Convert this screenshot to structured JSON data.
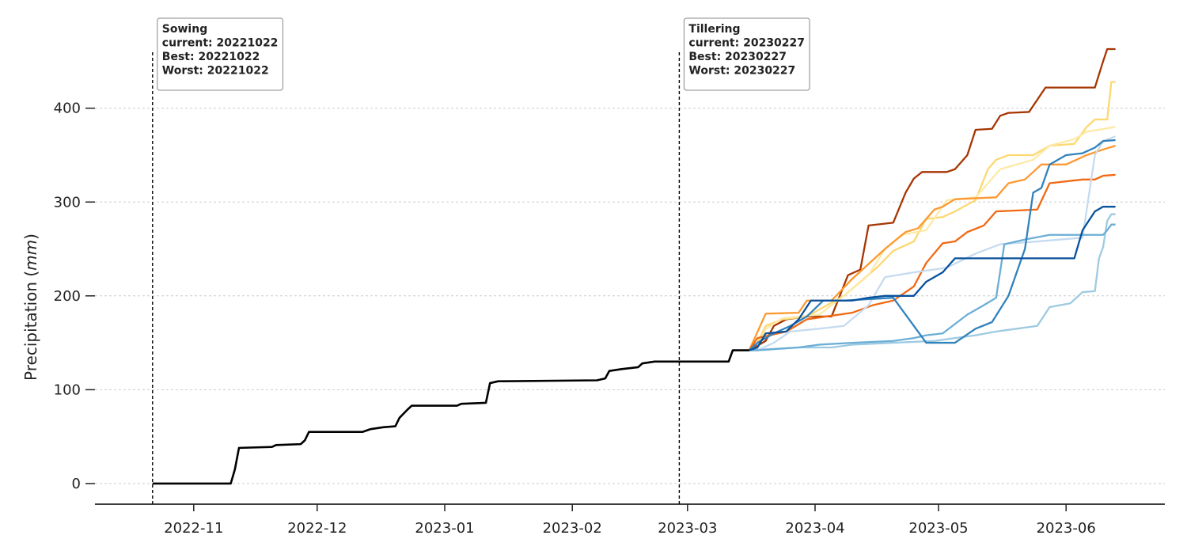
{
  "chart_data": {
    "type": "line",
    "ylabel_main": "Precipitation (",
    "ylabel_unit": "mm",
    "ylabel_close": ")",
    "ylim": [
      -22,
      490
    ],
    "xlim": [
      "2022-10-08",
      "2023-06-25"
    ],
    "grid": "horizontal dashed",
    "yticks": [
      0,
      100,
      200,
      300,
      400
    ],
    "xticks": [
      "2022-11-01",
      "2022-12-01",
      "2023-01-01",
      "2023-02-01",
      "2023-03-01",
      "2023-04-01",
      "2023-05-01",
      "2023-06-01"
    ],
    "xtick_labels": [
      "2022-11",
      "2022-12",
      "2023-01",
      "2023-02",
      "2023-03",
      "2023-04",
      "2023-05",
      "2023-06"
    ],
    "annotations": [
      {
        "date": "2022-10-22",
        "lines": [
          "Sowing",
          "current: 20221022",
          "Best: 20221022",
          "Worst: 20221022"
        ]
      },
      {
        "date": "2023-02-27",
        "lines": [
          "Tillering",
          "current: 20230227",
          "Best: 20230227",
          "Worst: 20230227"
        ]
      }
    ],
    "observed": {
      "color": "#000000",
      "points": [
        [
          "2022-10-22",
          0
        ],
        [
          "2022-11-10",
          0
        ],
        [
          "2022-11-11",
          15
        ],
        [
          "2022-11-12",
          38
        ],
        [
          "2022-11-20",
          39
        ],
        [
          "2022-11-21",
          41
        ],
        [
          "2022-11-27",
          42
        ],
        [
          "2022-11-28",
          46
        ],
        [
          "2022-11-29",
          55
        ],
        [
          "2022-12-12",
          55
        ],
        [
          "2022-12-14",
          58
        ],
        [
          "2022-12-17",
          60
        ],
        [
          "2022-12-20",
          61
        ],
        [
          "2022-12-21",
          70
        ],
        [
          "2022-12-23",
          79
        ],
        [
          "2022-12-24",
          83
        ],
        [
          "2023-01-04",
          83
        ],
        [
          "2023-01-05",
          85
        ],
        [
          "2023-01-11",
          86
        ],
        [
          "2023-01-12",
          107
        ],
        [
          "2023-01-14",
          109
        ],
        [
          "2023-02-07",
          110
        ],
        [
          "2023-02-09",
          112
        ],
        [
          "2023-02-10",
          120
        ],
        [
          "2023-02-13",
          122
        ],
        [
          "2023-02-17",
          124
        ],
        [
          "2023-02-18",
          128
        ],
        [
          "2023-02-21",
          130
        ],
        [
          "2023-03-11",
          130
        ],
        [
          "2023-03-12",
          142
        ],
        [
          "2023-03-16",
          142
        ]
      ]
    },
    "forecast_start": [
      "2023-03-16",
      142
    ],
    "series": [
      {
        "color": "#a63603",
        "points": [
          [
            "2023-03-20",
            152
          ],
          [
            "2023-03-22",
            168
          ],
          [
            "2023-03-25",
            175
          ],
          [
            "2023-03-30",
            178
          ],
          [
            "2023-04-05",
            178
          ],
          [
            "2023-04-07",
            200
          ],
          [
            "2023-04-09",
            222
          ],
          [
            "2023-04-12",
            228
          ],
          [
            "2023-04-14",
            275
          ],
          [
            "2023-04-20",
            278
          ],
          [
            "2023-04-23",
            310
          ],
          [
            "2023-04-25",
            325
          ],
          [
            "2023-04-27",
            332
          ],
          [
            "2023-05-03",
            332
          ],
          [
            "2023-05-05",
            335
          ],
          [
            "2023-05-08",
            350
          ],
          [
            "2023-05-10",
            377
          ],
          [
            "2023-05-14",
            378
          ],
          [
            "2023-05-16",
            392
          ],
          [
            "2023-05-18",
            395
          ],
          [
            "2023-05-23",
            396
          ],
          [
            "2023-05-27",
            422
          ],
          [
            "2023-06-08",
            422
          ],
          [
            "2023-06-10",
            450
          ],
          [
            "2023-06-11",
            463
          ],
          [
            "2023-06-13",
            463
          ]
        ]
      },
      {
        "color": "#fdd870",
        "points": [
          [
            "2023-03-18",
            150
          ],
          [
            "2023-03-20",
            168
          ],
          [
            "2023-03-24",
            175
          ],
          [
            "2023-03-30",
            178
          ],
          [
            "2023-04-08",
            200
          ],
          [
            "2023-04-12",
            215
          ],
          [
            "2023-04-16",
            230
          ],
          [
            "2023-04-20",
            248
          ],
          [
            "2023-04-25",
            258
          ],
          [
            "2023-04-28",
            282
          ],
          [
            "2023-05-02",
            284
          ],
          [
            "2023-05-05",
            290
          ],
          [
            "2023-05-10",
            302
          ],
          [
            "2023-05-13",
            335
          ],
          [
            "2023-05-15",
            345
          ],
          [
            "2023-05-18",
            350
          ],
          [
            "2023-05-24",
            350
          ],
          [
            "2023-05-28",
            360
          ],
          [
            "2023-06-03",
            362
          ],
          [
            "2023-06-06",
            380
          ],
          [
            "2023-06-08",
            388
          ],
          [
            "2023-06-11",
            388
          ],
          [
            "2023-06-12",
            428
          ],
          [
            "2023-06-13",
            428
          ]
        ]
      },
      {
        "color": "#fee9a6",
        "points": [
          [
            "2023-03-18",
            145
          ],
          [
            "2023-03-20",
            165
          ],
          [
            "2023-03-24",
            176
          ],
          [
            "2023-04-02",
            180
          ],
          [
            "2023-04-08",
            200
          ],
          [
            "2023-04-14",
            222
          ],
          [
            "2023-04-18",
            250
          ],
          [
            "2023-04-22",
            265
          ],
          [
            "2023-04-28",
            270
          ],
          [
            "2023-05-03",
            302
          ],
          [
            "2023-05-10",
            305
          ],
          [
            "2023-05-16",
            335
          ],
          [
            "2023-05-24",
            345
          ],
          [
            "2023-05-28",
            360
          ],
          [
            "2023-06-03",
            367
          ],
          [
            "2023-06-06",
            375
          ],
          [
            "2023-06-13",
            380
          ]
        ]
      },
      {
        "color": "#fd9930",
        "points": [
          [
            "2023-03-20",
            181
          ],
          [
            "2023-03-28",
            182
          ],
          [
            "2023-03-30",
            195
          ],
          [
            "2023-04-05",
            195
          ],
          [
            "2023-04-10",
            218
          ],
          [
            "2023-04-15",
            238
          ],
          [
            "2023-04-18",
            250
          ],
          [
            "2023-04-23",
            268
          ],
          [
            "2023-04-26",
            272
          ],
          [
            "2023-04-30",
            292
          ],
          [
            "2023-05-02",
            295
          ],
          [
            "2023-05-05",
            303
          ],
          [
            "2023-05-15",
            305
          ],
          [
            "2023-05-18",
            320
          ],
          [
            "2023-05-22",
            324
          ],
          [
            "2023-05-26",
            340
          ],
          [
            "2023-06-01",
            340
          ],
          [
            "2023-06-06",
            350
          ],
          [
            "2023-06-10",
            356
          ],
          [
            "2023-06-13",
            360
          ]
        ]
      },
      {
        "color": "#f16913",
        "points": [
          [
            "2023-03-18",
            155
          ],
          [
            "2023-03-25",
            162
          ],
          [
            "2023-03-30",
            175
          ],
          [
            "2023-04-10",
            182
          ],
          [
            "2023-04-15",
            190
          ],
          [
            "2023-04-20",
            195
          ],
          [
            "2023-04-25",
            210
          ],
          [
            "2023-04-28",
            235
          ],
          [
            "2023-05-02",
            256
          ],
          [
            "2023-05-05",
            258
          ],
          [
            "2023-05-08",
            268
          ],
          [
            "2023-05-12",
            275
          ],
          [
            "2023-05-15",
            290
          ],
          [
            "2023-05-25",
            292
          ],
          [
            "2023-05-28",
            320
          ],
          [
            "2023-06-05",
            324
          ],
          [
            "2023-06-08",
            324
          ],
          [
            "2023-06-10",
            328
          ],
          [
            "2023-06-13",
            329
          ]
        ]
      },
      {
        "color": "#9ecae1",
        "points": [
          [
            "2023-03-20",
            143
          ],
          [
            "2023-03-28",
            145
          ],
          [
            "2023-04-05",
            145
          ],
          [
            "2023-04-10",
            148
          ],
          [
            "2023-04-20",
            150
          ],
          [
            "2023-04-30",
            152
          ],
          [
            "2023-05-05",
            155
          ],
          [
            "2023-05-10",
            158
          ],
          [
            "2023-05-15",
            162
          ],
          [
            "2023-05-20",
            165
          ],
          [
            "2023-05-25",
            168
          ],
          [
            "2023-05-28",
            188
          ],
          [
            "2023-06-02",
            192
          ],
          [
            "2023-06-05",
            204
          ],
          [
            "2023-06-08",
            205
          ],
          [
            "2023-06-09",
            240
          ],
          [
            "2023-06-10",
            252
          ],
          [
            "2023-06-11",
            280
          ],
          [
            "2023-06-12",
            287
          ],
          [
            "2023-06-13",
            287
          ]
        ]
      },
      {
        "color": "#c6dbef",
        "points": [
          [
            "2023-03-18",
            142
          ],
          [
            "2023-03-22",
            150
          ],
          [
            "2023-03-26",
            162
          ],
          [
            "2023-04-02",
            165
          ],
          [
            "2023-04-08",
            168
          ],
          [
            "2023-04-14",
            190
          ],
          [
            "2023-04-18",
            220
          ],
          [
            "2023-04-25",
            225
          ],
          [
            "2023-05-03",
            230
          ],
          [
            "2023-05-10",
            245
          ],
          [
            "2023-05-16",
            255
          ],
          [
            "2023-05-25",
            258
          ],
          [
            "2023-06-05",
            262
          ],
          [
            "2023-06-08",
            350
          ],
          [
            "2023-06-10",
            365
          ],
          [
            "2023-06-13",
            370
          ]
        ]
      },
      {
        "color": "#6baed6",
        "points": [
          [
            "2023-03-18",
            142
          ],
          [
            "2023-03-28",
            145
          ],
          [
            "2023-04-02",
            148
          ],
          [
            "2023-04-10",
            150
          ],
          [
            "2023-04-20",
            152
          ],
          [
            "2023-04-25",
            155
          ],
          [
            "2023-04-28",
            158
          ],
          [
            "2023-05-02",
            160
          ],
          [
            "2023-05-08",
            180
          ],
          [
            "2023-05-12",
            190
          ],
          [
            "2023-05-15",
            198
          ],
          [
            "2023-05-17",
            255
          ],
          [
            "2023-05-22",
            260
          ],
          [
            "2023-05-28",
            265
          ],
          [
            "2023-06-10",
            265
          ],
          [
            "2023-06-11",
            270
          ],
          [
            "2023-06-12",
            276
          ],
          [
            "2023-06-13",
            276
          ]
        ]
      },
      {
        "color": "#3182bd",
        "points": [
          [
            "2023-03-18",
            150
          ],
          [
            "2023-03-22",
            160
          ],
          [
            "2023-03-26",
            168
          ],
          [
            "2023-03-30",
            178
          ],
          [
            "2023-04-03",
            195
          ],
          [
            "2023-04-08",
            195
          ],
          [
            "2023-04-20",
            198
          ],
          [
            "2023-04-28",
            150
          ],
          [
            "2023-05-05",
            150
          ],
          [
            "2023-05-10",
            165
          ],
          [
            "2023-05-14",
            172
          ],
          [
            "2023-05-18",
            200
          ],
          [
            "2023-05-20",
            225
          ],
          [
            "2023-05-22",
            250
          ],
          [
            "2023-05-24",
            310
          ],
          [
            "2023-05-26",
            315
          ],
          [
            "2023-05-28",
            340
          ],
          [
            "2023-06-01",
            350
          ],
          [
            "2023-06-05",
            352
          ],
          [
            "2023-06-08",
            358
          ],
          [
            "2023-06-10",
            365
          ],
          [
            "2023-06-13",
            366
          ]
        ]
      },
      {
        "color": "#08519c",
        "points": [
          [
            "2023-03-18",
            145
          ],
          [
            "2023-03-20",
            160
          ],
          [
            "2023-03-25",
            162
          ],
          [
            "2023-03-28",
            175
          ],
          [
            "2023-03-31",
            195
          ],
          [
            "2023-04-10",
            195
          ],
          [
            "2023-04-14",
            198
          ],
          [
            "2023-04-18",
            200
          ],
          [
            "2023-04-25",
            200
          ],
          [
            "2023-04-28",
            215
          ],
          [
            "2023-05-02",
            225
          ],
          [
            "2023-05-05",
            240
          ],
          [
            "2023-05-20",
            240
          ],
          [
            "2023-06-03",
            240
          ],
          [
            "2023-06-05",
            270
          ],
          [
            "2023-06-08",
            290
          ],
          [
            "2023-06-10",
            295
          ],
          [
            "2023-06-13",
            295
          ]
        ]
      }
    ]
  }
}
